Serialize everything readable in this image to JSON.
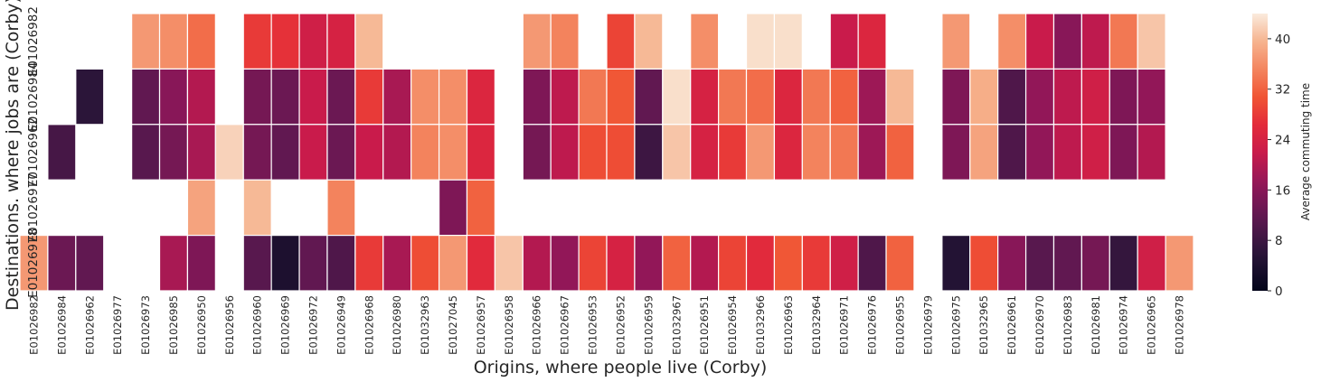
{
  "chart_data": {
    "type": "heatmap",
    "xlabel": "Origins, where people live (Corby)",
    "ylabel": "Destinations. where jobs are (Corby)",
    "x_categories": [
      "E01026982",
      "E01026984",
      "E01026962",
      "E01026977",
      "E01026973",
      "E01026985",
      "E01026950",
      "E01026956",
      "E01026960",
      "E01026969",
      "E01026972",
      "E01026949",
      "E01026968",
      "E01026980",
      "E01032963",
      "E01027045",
      "E01026957",
      "E01026958",
      "E01026966",
      "E01026967",
      "E01026953",
      "E01026952",
      "E01026959",
      "E01032967",
      "E01026951",
      "E01026954",
      "E01032966",
      "E01026963",
      "E01032964",
      "E01026971",
      "E01026976",
      "E01026955",
      "E01026979",
      "E01026975",
      "E01032965",
      "E01026961",
      "E01026970",
      "E01026983",
      "E01026981",
      "E01026974",
      "E01026965",
      "E01026978"
    ],
    "y_categories": [
      "E01026982",
      "E01026984",
      "E01026962",
      "E01026977",
      "E01026978"
    ],
    "values": [
      [
        null,
        null,
        null,
        null,
        37,
        36,
        33,
        null,
        28,
        27,
        23,
        24,
        40,
        null,
        null,
        null,
        null,
        null,
        37,
        35,
        null,
        29,
        40,
        null,
        36,
        null,
        43,
        43,
        null,
        22,
        25,
        null,
        null,
        37,
        null,
        36,
        22,
        16,
        21,
        34,
        41,
        null
      ],
      [
        null,
        null,
        6,
        null,
        12,
        16,
        20,
        null,
        14,
        13,
        22,
        13,
        28,
        19,
        36,
        36,
        25,
        null,
        15,
        21,
        34,
        31,
        12,
        43,
        24,
        34,
        33,
        25,
        34,
        32,
        18,
        40,
        null,
        15,
        39,
        10,
        17,
        21,
        23,
        15,
        17,
        null
      ],
      [
        null,
        9,
        null,
        null,
        11,
        14,
        19,
        42,
        14,
        12,
        22,
        13,
        22,
        20,
        35,
        36,
        25,
        null,
        14,
        21,
        30,
        30,
        8,
        41,
        24,
        28,
        37,
        25,
        35,
        34,
        18,
        32,
        null,
        15,
        38,
        10,
        17,
        21,
        23,
        15,
        20,
        null
      ],
      [
        null,
        null,
        null,
        null,
        null,
        null,
        38,
        null,
        40,
        null,
        null,
        35,
        null,
        null,
        null,
        15,
        32,
        null,
        null,
        null,
        null,
        null,
        null,
        null,
        null,
        null,
        null,
        null,
        null,
        null,
        null,
        null,
        null,
        null,
        null,
        null,
        null,
        null,
        null,
        null,
        null,
        null
      ],
      [
        37,
        13,
        12,
        null,
        null,
        19,
        15,
        null,
        11,
        4,
        12,
        10,
        28,
        19,
        30,
        37,
        26,
        41,
        20,
        17,
        29,
        24,
        17,
        32,
        20,
        29,
        26,
        31,
        28,
        23,
        10,
        32,
        null,
        5,
        30,
        16,
        11,
        12,
        14,
        7,
        23,
        37
      ]
    ],
    "colorbar": {
      "label": "Average commuting time",
      "ticks": [
        0,
        8,
        16,
        24,
        32,
        40
      ],
      "range": [
        0,
        44
      ],
      "colormap": "rocket"
    },
    "colors": {
      "background": "#ffffff",
      "gridline": "#ffffff",
      "text": "#262626"
    }
  }
}
